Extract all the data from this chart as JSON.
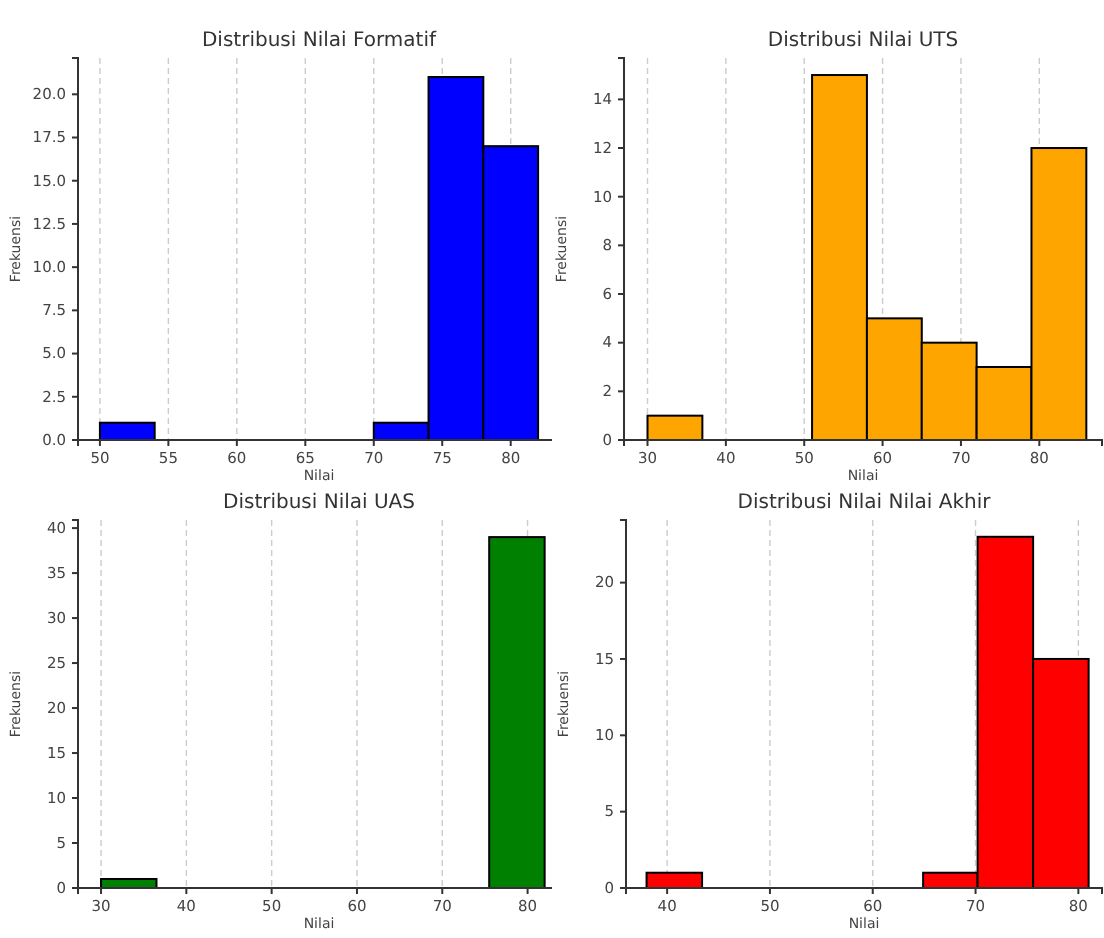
{
  "chart_data": [
    {
      "type": "histogram",
      "title": "Distribusi Nilai Formatif",
      "xlabel": "Nilai",
      "ylabel": "Frekuensi",
      "color": "#0000ff",
      "grid": "x",
      "bins": [
        50,
        54,
        70,
        74,
        78,
        82
      ],
      "values": [
        1,
        0,
        1,
        21,
        17
      ],
      "xlim": [
        48.4,
        83.6
      ],
      "xticks": [
        50,
        55,
        60,
        65,
        70,
        75,
        80
      ],
      "ylim": [
        0,
        22.1
      ],
      "yticks": [
        {
          "value": 0,
          "label": "0.0"
        },
        {
          "value": 2.5,
          "label": "2.5"
        },
        {
          "value": 5,
          "label": "5.0"
        },
        {
          "value": 7.5,
          "label": "7.5"
        },
        {
          "value": 10,
          "label": "10.0"
        },
        {
          "value": 12.5,
          "label": "12.5"
        },
        {
          "value": 15,
          "label": "15.0"
        },
        {
          "value": 17.5,
          "label": "17.5"
        },
        {
          "value": 20,
          "label": "20.0"
        }
      ]
    },
    {
      "type": "histogram",
      "title": "Distribusi Nilai UTS",
      "xlabel": "Nilai",
      "ylabel": "Frekuensi",
      "color": "#ffa500",
      "grid": "x",
      "bins": [
        30,
        37,
        51,
        58,
        65,
        72,
        79,
        86
      ],
      "values": [
        1,
        0,
        15,
        5,
        4,
        3,
        12
      ],
      "xlim": [
        27,
        88
      ],
      "xticks": [
        30,
        40,
        50,
        60,
        70,
        80
      ],
      "ylim": [
        0,
        15.7
      ],
      "yticks": [
        0,
        2,
        4,
        6,
        8,
        10,
        12,
        14
      ]
    },
    {
      "type": "histogram",
      "title": "Distribusi Nilai UAS",
      "xlabel": "Nilai",
      "ylabel": "Frekuensi",
      "color": "#008000",
      "grid": "x",
      "bins": [
        30,
        36.5,
        75.5,
        82
      ],
      "values": [
        1,
        0,
        39
      ],
      "xlim": [
        27.3,
        83.8
      ],
      "xticks": [
        30,
        40,
        50,
        60,
        70,
        80
      ],
      "ylim": [
        0,
        40.9
      ],
      "yticks": [
        0,
        5,
        10,
        15,
        20,
        25,
        30,
        35,
        40
      ]
    },
    {
      "type": "histogram",
      "title": "Distribusi Nilai Nilai Akhir",
      "xlabel": "Nilai",
      "ylabel": "Frekuensi",
      "color": "#ff0000",
      "grid": "x",
      "bins": [
        38,
        43.4,
        64.9,
        70.2,
        75.6,
        81
      ],
      "values": [
        1,
        0,
        1,
        23,
        15
      ],
      "xlim": [
        36,
        82.3
      ],
      "xticks": [
        40,
        50,
        60,
        70,
        80
      ],
      "ylim": [
        0,
        24.1
      ],
      "yticks": [
        0,
        5,
        10,
        15,
        20
      ]
    }
  ]
}
